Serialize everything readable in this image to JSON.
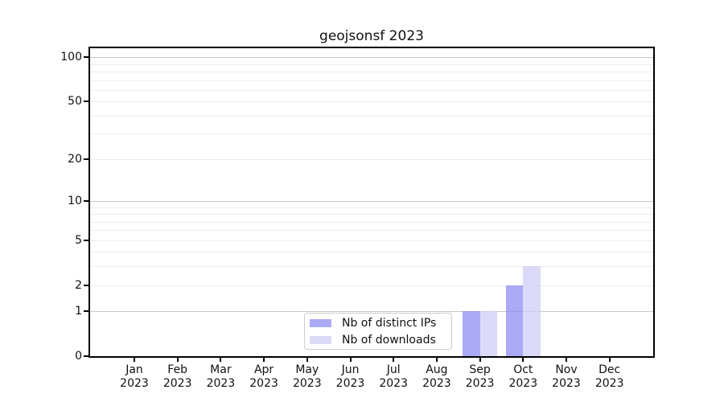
{
  "chart_data": {
    "type": "bar",
    "title": "geojsonsf 2023",
    "x_tick_year": "2023",
    "categories": [
      "Jan",
      "Feb",
      "Mar",
      "Apr",
      "May",
      "Jun",
      "Jul",
      "Aug",
      "Sep",
      "Oct",
      "Nov",
      "Dec"
    ],
    "series": [
      {
        "name": "Nb of distinct IPs",
        "color": "#8989f2",
        "opacity": 0.72,
        "values": [
          0,
          0,
          0,
          0,
          0,
          0,
          0,
          0,
          1,
          2,
          0,
          0
        ]
      },
      {
        "name": "Nb of downloads",
        "color": "#cdccf5",
        "opacity": 0.72,
        "values": [
          0,
          0,
          0,
          0,
          0,
          0,
          0,
          0,
          1,
          3,
          0,
          0
        ]
      }
    ],
    "scale": "log1p",
    "ylim": [
      0,
      115
    ],
    "yticks": [
      0,
      1,
      2,
      5,
      10,
      20,
      50,
      100
    ],
    "minor_gridlines": [
      3,
      4,
      6,
      7,
      8,
      9,
      30,
      40,
      60,
      70,
      80,
      90
    ],
    "grid": "horizontal",
    "legend_position": "inside lower-center",
    "colors": {
      "decade_gridline": "#c8c8c8",
      "minor_gridline": "#ececec",
      "axis": "#000000",
      "legend_border": "#cccccc",
      "background": "#ffffff"
    }
  }
}
